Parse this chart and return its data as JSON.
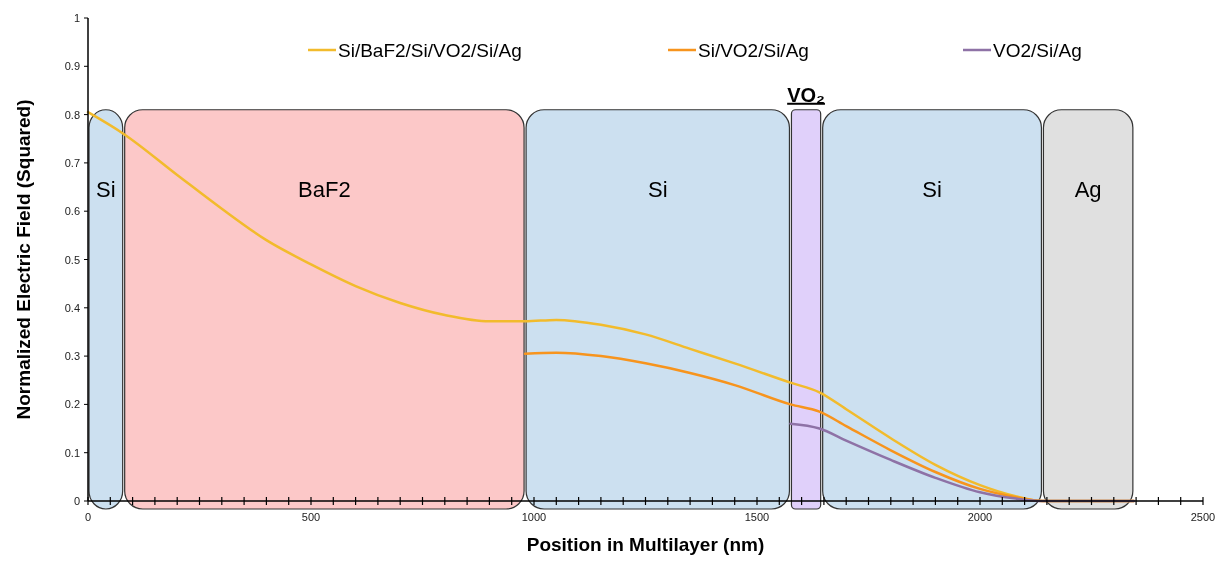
{
  "chart_data": {
    "type": "line",
    "xlabel": "Position in Multilayer (nm)",
    "ylabel": "Normalized Electric Field (Squared)",
    "xlim": [
      0,
      2500
    ],
    "ylim": [
      0,
      1
    ],
    "xticks": [
      0,
      {
        "value": 50,
        "label": null
      },
      {
        "value": 100,
        "label": null
      },
      {
        "value": 150,
        "label": null
      },
      {
        "value": 200,
        "label": null
      },
      {
        "value": 250,
        "label": null
      },
      {
        "value": 300,
        "label": null
      },
      {
        "value": 350,
        "label": null
      },
      {
        "value": 400,
        "label": null
      },
      {
        "value": 450,
        "label": null
      },
      500,
      {
        "value": 550,
        "label": null
      },
      {
        "value": 600,
        "label": null
      },
      {
        "value": 650,
        "label": null
      },
      {
        "value": 700,
        "label": null
      },
      {
        "value": 750,
        "label": null
      },
      {
        "value": 800,
        "label": null
      },
      {
        "value": 850,
        "label": null
      },
      {
        "value": 900,
        "label": null
      },
      {
        "value": 950,
        "label": null
      },
      1000,
      {
        "value": 1050,
        "label": null
      },
      {
        "value": 1100,
        "label": null
      },
      {
        "value": 1150,
        "label": null
      },
      {
        "value": 1200,
        "label": null
      },
      {
        "value": 1250,
        "label": null
      },
      {
        "value": 1300,
        "label": null
      },
      {
        "value": 1350,
        "label": null
      },
      {
        "value": 1400,
        "label": null
      },
      {
        "value": 1450,
        "label": null
      },
      1500,
      {
        "value": 1550,
        "label": null
      },
      {
        "value": 1600,
        "label": null
      },
      {
        "value": 1650,
        "label": null
      },
      {
        "value": 1700,
        "label": null
      },
      {
        "value": 1750,
        "label": null
      },
      {
        "value": 1800,
        "label": null
      },
      {
        "value": 1850,
        "label": null
      },
      {
        "value": 1900,
        "label": null
      },
      {
        "value": 1950,
        "label": null
      },
      2000,
      {
        "value": 2050,
        "label": null
      },
      {
        "value": 2100,
        "label": null
      },
      {
        "value": 2150,
        "label": null
      },
      {
        "value": 2200,
        "label": null
      },
      {
        "value": 2250,
        "label": null
      },
      {
        "value": 2300,
        "label": null
      },
      {
        "value": 2350,
        "label": null
      },
      {
        "value": 2400,
        "label": null
      },
      {
        "value": 2450,
        "label": null
      },
      2500
    ],
    "yticks": [
      0,
      0.1,
      0.2,
      0.3,
      0.4,
      0.5,
      0.6,
      0.7,
      0.8,
      0.9,
      1
    ],
    "grid": false,
    "legend": "top",
    "line_style": "solid",
    "marker": "none",
    "bands": [
      {
        "axis": "x",
        "from": 0,
        "to": 80,
        "label": "Si",
        "color": "#cce0f0"
      },
      {
        "axis": "x",
        "from": 80,
        "to": 980,
        "label": "BaF2",
        "color": "#fcc8c8"
      },
      {
        "axis": "x",
        "from": 980,
        "to": 1575,
        "label": "Si",
        "color": "#cce0f0"
      },
      {
        "axis": "x",
        "from": 1575,
        "to": 1645,
        "label": "VO₂",
        "color": "#e0d0fa"
      },
      {
        "axis": "x",
        "from": 1645,
        "to": 2140,
        "label": "Si",
        "color": "#cce0f0"
      },
      {
        "axis": "x",
        "from": 2140,
        "to": 2345,
        "label": "Ag",
        "color": "#e0e0e0"
      }
    ],
    "series": [
      {
        "name": "Si/BaF2/Si/VO2/Si/Ag",
        "color": "#f2bb2c",
        "x": [
          0,
          80,
          200,
          300,
          400,
          500,
          600,
          700,
          800,
          900,
          980,
          1050,
          1150,
          1250,
          1350,
          1450,
          1575,
          1640,
          1700,
          1800,
          1900,
          2000,
          2080,
          2140,
          2345
        ],
        "values": [
          0.805,
          0.76,
          0.675,
          0.605,
          0.54,
          0.49,
          0.445,
          0.41,
          0.385,
          0.372,
          0.372,
          0.375,
          0.365,
          0.345,
          0.315,
          0.285,
          0.245,
          0.225,
          0.19,
          0.13,
          0.075,
          0.033,
          0.01,
          0,
          0
        ]
      },
      {
        "name": "Si/VO2/Si/Ag",
        "color": "#f7941d",
        "x": [
          980,
          1050,
          1150,
          1250,
          1350,
          1450,
          1575,
          1640,
          1700,
          1800,
          1900,
          2000,
          2080,
          2140,
          2345
        ],
        "values": [
          0.305,
          0.307,
          0.3,
          0.285,
          0.265,
          0.24,
          0.2,
          0.185,
          0.155,
          0.105,
          0.06,
          0.025,
          0.008,
          0,
          0
        ]
      },
      {
        "name": "VO2/Si/Ag",
        "color": "#8e72a6",
        "x": [
          1575,
          1640,
          1700,
          1800,
          1900,
          2000,
          2080,
          2140,
          2345
        ],
        "values": [
          0.16,
          0.15,
          0.125,
          0.085,
          0.048,
          0.018,
          0.005,
          0,
          0
        ]
      }
    ]
  }
}
